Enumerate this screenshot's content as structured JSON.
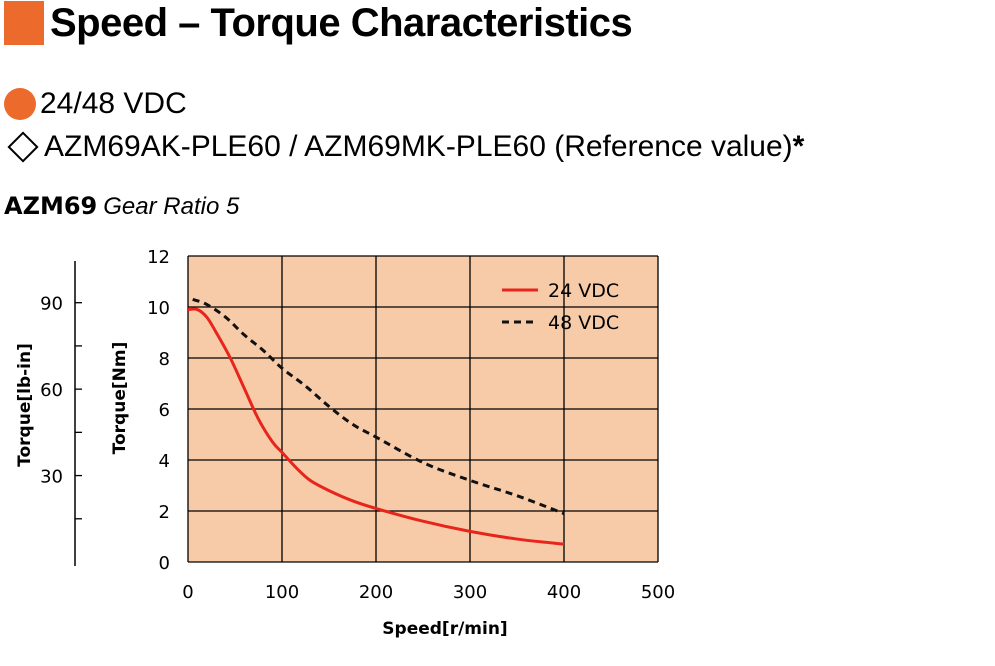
{
  "header": {
    "title": "Speed – Torque Characteristics",
    "voltage": "24/48 VDC",
    "model_line": "AZM69AK-PLE60 / AZM69MK-PLE60 (Reference value)",
    "asterisk": "*",
    "model_name": "AZM69",
    "gear_ratio": "Gear Ratio 5"
  },
  "colors": {
    "accent": "#ec6a2b",
    "plot_background": "#f8cba8",
    "series_24": "#e8251c",
    "series_48": "#111111"
  },
  "chart_data": {
    "type": "line",
    "xlabel": "Speed[r/min]",
    "ylabel": "Torque[Nm]",
    "ylabel_secondary": "Torque[lb-in]",
    "xlim": [
      0,
      500
    ],
    "ylim": [
      0,
      12
    ],
    "x_ticks": [
      "0",
      "100",
      "200",
      "300",
      "400",
      "500"
    ],
    "y_ticks": [
      "0",
      "2",
      "4",
      "6",
      "8",
      "10",
      "12"
    ],
    "y2_ticks": [
      {
        "value": 30,
        "label": "30"
      },
      {
        "value": 60,
        "label": "60"
      },
      {
        "value": 90,
        "label": "90"
      }
    ],
    "y2_factor": 8.8507,
    "grid": true,
    "legend_position": "top-right",
    "series": [
      {
        "name": "24 VDC",
        "style": "solid",
        "x": [
          0,
          10,
          20,
          30,
          45,
          60,
          75,
          90,
          100,
          115,
          130,
          150,
          175,
          200,
          250,
          300,
          350,
          400
        ],
        "y": [
          9.9,
          9.9,
          9.6,
          9.0,
          8.0,
          6.8,
          5.6,
          4.7,
          4.3,
          3.7,
          3.2,
          2.8,
          2.4,
          2.1,
          1.6,
          1.2,
          0.9,
          0.7
        ]
      },
      {
        "name": "48 VDC",
        "style": "dashed",
        "x": [
          5,
          20,
          40,
          60,
          80,
          100,
          125,
          150,
          175,
          200,
          250,
          300,
          350,
          400
        ],
        "y": [
          10.3,
          10.1,
          9.6,
          8.9,
          8.3,
          7.6,
          6.9,
          6.1,
          5.4,
          4.9,
          3.9,
          3.2,
          2.6,
          1.9
        ]
      }
    ]
  }
}
